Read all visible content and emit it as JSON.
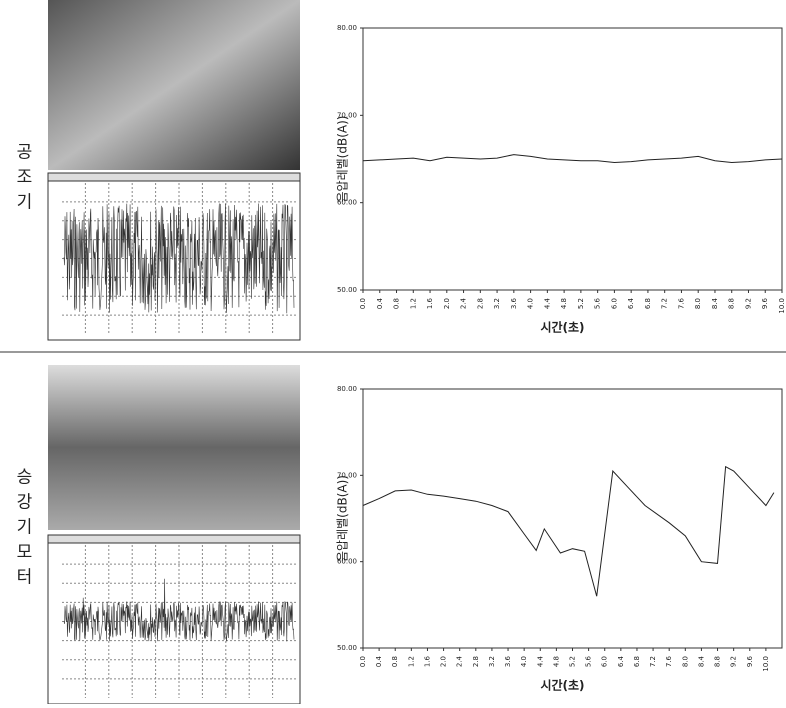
{
  "rows": [
    {
      "label": "공조기"
    },
    {
      "label": "승강기모터"
    }
  ],
  "chart_data": [
    {
      "type": "line",
      "y_label": "음압레벨(dB(A))",
      "x_label": "시간(초)",
      "x": [
        0,
        0.4,
        0.8,
        1.2,
        1.6,
        2.0,
        2.4,
        2.8,
        3.2,
        3.6,
        4.0,
        4.4,
        4.8,
        5.2,
        5.6,
        6.0,
        6.4,
        6.8,
        7.2,
        7.6,
        8.0,
        8.4,
        8.8,
        9.2,
        9.6,
        10.0
      ],
      "series": [
        {
          "color": "#222222",
          "values": [
            64.8,
            64.9,
            65.0,
            65.1,
            64.8,
            65.2,
            65.1,
            65.0,
            65.1,
            65.5,
            65.3,
            65.0,
            64.9,
            64.8,
            64.8,
            64.6,
            64.7,
            64.9,
            65.0,
            65.1,
            65.3,
            64.8,
            64.6,
            64.7,
            64.9,
            65.0
          ]
        }
      ],
      "xlim": [
        0,
        10
      ],
      "ylim": [
        50,
        80
      ],
      "yticks": [
        {
          "value": 50,
          "label": "50.00"
        },
        {
          "value": 60,
          "label": "60.00"
        },
        {
          "value": 70,
          "label": "70.00"
        },
        {
          "value": 80,
          "label": "80.00"
        }
      ],
      "xticks": [
        {
          "value": 0,
          "label": "0.0"
        },
        {
          "value": 0.4,
          "label": "0.4"
        },
        {
          "value": 0.8,
          "label": "0.8"
        },
        {
          "value": 1.2,
          "label": "1.2"
        },
        {
          "value": 1.6,
          "label": "1.6"
        },
        {
          "value": 2,
          "label": "2.0"
        },
        {
          "value": 2.4,
          "label": "2.4"
        },
        {
          "value": 2.8,
          "label": "2.8"
        },
        {
          "value": 3.2,
          "label": "3.2"
        },
        {
          "value": 3.6,
          "label": "3.6"
        },
        {
          "value": 4,
          "label": "4.0"
        },
        {
          "value": 4.4,
          "label": "4.4"
        },
        {
          "value": 4.8,
          "label": "4.8"
        },
        {
          "value": 5.2,
          "label": "5.2"
        },
        {
          "value": 5.6,
          "label": "5.6"
        },
        {
          "value": 6,
          "label": "6.0"
        },
        {
          "value": 6.4,
          "label": "6.4"
        },
        {
          "value": 6.8,
          "label": "6.8"
        },
        {
          "value": 7.2,
          "label": "7.2"
        },
        {
          "value": 7.6,
          "label": "7.6"
        },
        {
          "value": 8,
          "label": "8.0"
        },
        {
          "value": 8.4,
          "label": "8.4"
        },
        {
          "value": 8.8,
          "label": "8.8"
        },
        {
          "value": 9.2,
          "label": "9.2"
        },
        {
          "value": 9.6,
          "label": "9.6"
        },
        {
          "value": 10,
          "label": "10.0"
        }
      ]
    },
    {
      "type": "line",
      "y_label": "음압레벨(dB(A))",
      "x_label": "시간(초)",
      "x": [
        0,
        0.4,
        0.8,
        1.2,
        1.6,
        2.0,
        2.4,
        2.8,
        3.2,
        3.6,
        4.0,
        4.3,
        4.5,
        4.9,
        5.2,
        5.5,
        5.8,
        6.2,
        6.6,
        7.0,
        7.6,
        8.0,
        8.4,
        8.8,
        9.0,
        9.2,
        9.6,
        10.0,
        10.2
      ],
      "series": [
        {
          "color": "#222222",
          "values": [
            66.5,
            67.3,
            68.2,
            68.3,
            67.8,
            67.6,
            67.3,
            67.0,
            66.5,
            65.8,
            63.2,
            61.3,
            63.8,
            61.0,
            61.5,
            61.2,
            56.0,
            70.5,
            68.5,
            66.5,
            64.5,
            63.0,
            60.0,
            59.8,
            71.0,
            70.5,
            68.5,
            66.5,
            68.0
          ]
        }
      ],
      "xlim": [
        0,
        10.4
      ],
      "ylim": [
        50,
        80
      ],
      "yticks": [
        {
          "value": 50,
          "label": "50.00"
        },
        {
          "value": 60,
          "label": "60.00"
        },
        {
          "value": 70,
          "label": "70.00"
        },
        {
          "value": 80,
          "label": "80.00"
        }
      ],
      "xticks": [
        {
          "value": 0,
          "label": "0.0"
        },
        {
          "value": 0.4,
          "label": "0.4"
        },
        {
          "value": 0.8,
          "label": "0.8"
        },
        {
          "value": 1.2,
          "label": "1.2"
        },
        {
          "value": 1.6,
          "label": "1.6"
        },
        {
          "value": 2,
          "label": "2.0"
        },
        {
          "value": 2.4,
          "label": "2.4"
        },
        {
          "value": 2.8,
          "label": "2.8"
        },
        {
          "value": 3.2,
          "label": "3.2"
        },
        {
          "value": 3.6,
          "label": "3.6"
        },
        {
          "value": 4,
          "label": "4.0"
        },
        {
          "value": 4.4,
          "label": "4.4"
        },
        {
          "value": 4.8,
          "label": "4.8"
        },
        {
          "value": 5.2,
          "label": "5.2"
        },
        {
          "value": 5.6,
          "label": "5.6"
        },
        {
          "value": 6,
          "label": "6.0"
        },
        {
          "value": 6.4,
          "label": "6.4"
        },
        {
          "value": 6.8,
          "label": "6.8"
        },
        {
          "value": 7.2,
          "label": "7.2"
        },
        {
          "value": 7.6,
          "label": "7.6"
        },
        {
          "value": 8,
          "label": "8.0"
        },
        {
          "value": 8.4,
          "label": "8.4"
        },
        {
          "value": 8.8,
          "label": "8.8"
        },
        {
          "value": 9.2,
          "label": "9.2"
        },
        {
          "value": 9.6,
          "label": "9.6"
        },
        {
          "value": 10,
          "label": "10.0"
        }
      ]
    }
  ]
}
